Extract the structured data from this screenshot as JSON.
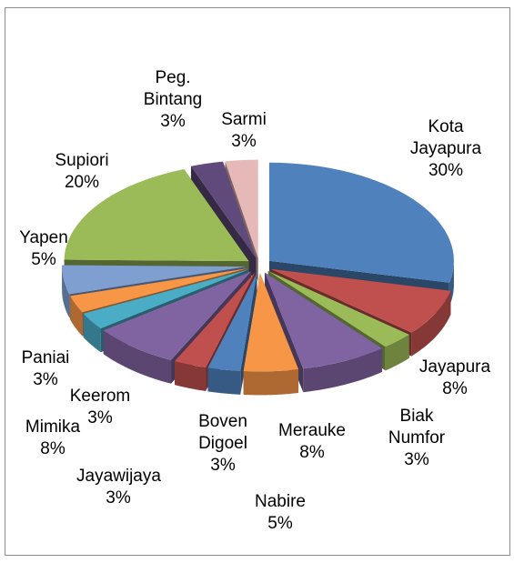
{
  "chart_data": {
    "type": "pie",
    "categories": [
      "Kota Jayapura",
      "Jayapura",
      "Biak Numfor",
      "Merauke",
      "Nabire",
      "Boven Digoel",
      "Jayawijaya",
      "Mimika",
      "Keerom",
      "Paniai",
      "Yapen",
      "Supiori",
      "Peg. Bintang",
      "Sarmi"
    ],
    "values": [
      30,
      8,
      3,
      8,
      5,
      3,
      3,
      8,
      3,
      3,
      5,
      20,
      3,
      3
    ],
    "value_labels": [
      "30%",
      "8%",
      "3%",
      "8%",
      "5%",
      "3%",
      "3%",
      "8%",
      "3%",
      "3%",
      "5%",
      "20%",
      "3%",
      "3%"
    ],
    "colors": [
      "#4f81bd",
      "#c0504d",
      "#9bbb59",
      "#8064a2",
      "#f79646",
      "#4f81bd",
      "#c0504d",
      "#8064a2",
      "#4bacc6",
      "#f79646",
      "#7f9fd1",
      "#9bbb59",
      "#604a7b",
      "#e6b9b8"
    ]
  }
}
